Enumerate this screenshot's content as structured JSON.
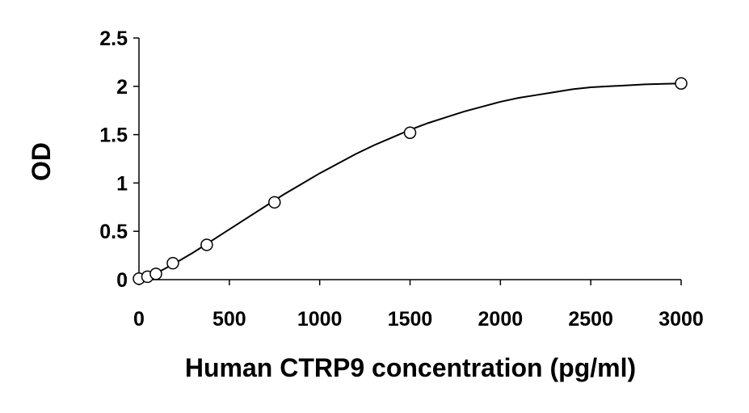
{
  "chart_data": {
    "type": "scatter",
    "title": "",
    "xlabel": "Human CTRP9 concentration (pg/ml)",
    "ylabel": "OD",
    "xlim": [
      0,
      3000
    ],
    "ylim": [
      0,
      2.5
    ],
    "xticks": [
      0,
      500,
      1000,
      1500,
      2000,
      2500,
      3000
    ],
    "yticks": [
      0,
      0.5,
      1,
      1.5,
      2,
      2.5
    ],
    "xtick_labels": [
      "0",
      "500",
      "1000",
      "1500",
      "2000",
      "2500",
      "3000"
    ],
    "ytick_labels": [
      "0",
      "0.5",
      "1",
      "1.5",
      "2",
      "2.5"
    ],
    "grid": false,
    "legend": "none",
    "series": [
      {
        "marker": "open-circle",
        "color": "#000000",
        "x": [
          0,
          46.875,
          93.75,
          187.5,
          375,
          750,
          1500,
          3000
        ],
        "y": [
          0.01,
          0.03,
          0.06,
          0.17,
          0.36,
          0.8,
          1.52,
          2.03
        ]
      }
    ],
    "fit_line": {
      "kind": "smooth-curve",
      "color": "#000000",
      "x": [
        0,
        100,
        200,
        300,
        400,
        500,
        600,
        700,
        800,
        900,
        1000,
        1100,
        1200,
        1300,
        1400,
        1500,
        1600,
        1700,
        1800,
        1900,
        2000,
        2100,
        2200,
        2300,
        2400,
        2500,
        2600,
        2700,
        2800,
        2900,
        3000
      ],
      "y": [
        0.0,
        0.07,
        0.17,
        0.28,
        0.4,
        0.52,
        0.64,
        0.76,
        0.88,
        0.99,
        1.1,
        1.2,
        1.3,
        1.39,
        1.47,
        1.55,
        1.62,
        1.68,
        1.74,
        1.79,
        1.84,
        1.88,
        1.91,
        1.94,
        1.97,
        1.99,
        2.0,
        2.01,
        2.02,
        2.025,
        2.03
      ]
    }
  }
}
